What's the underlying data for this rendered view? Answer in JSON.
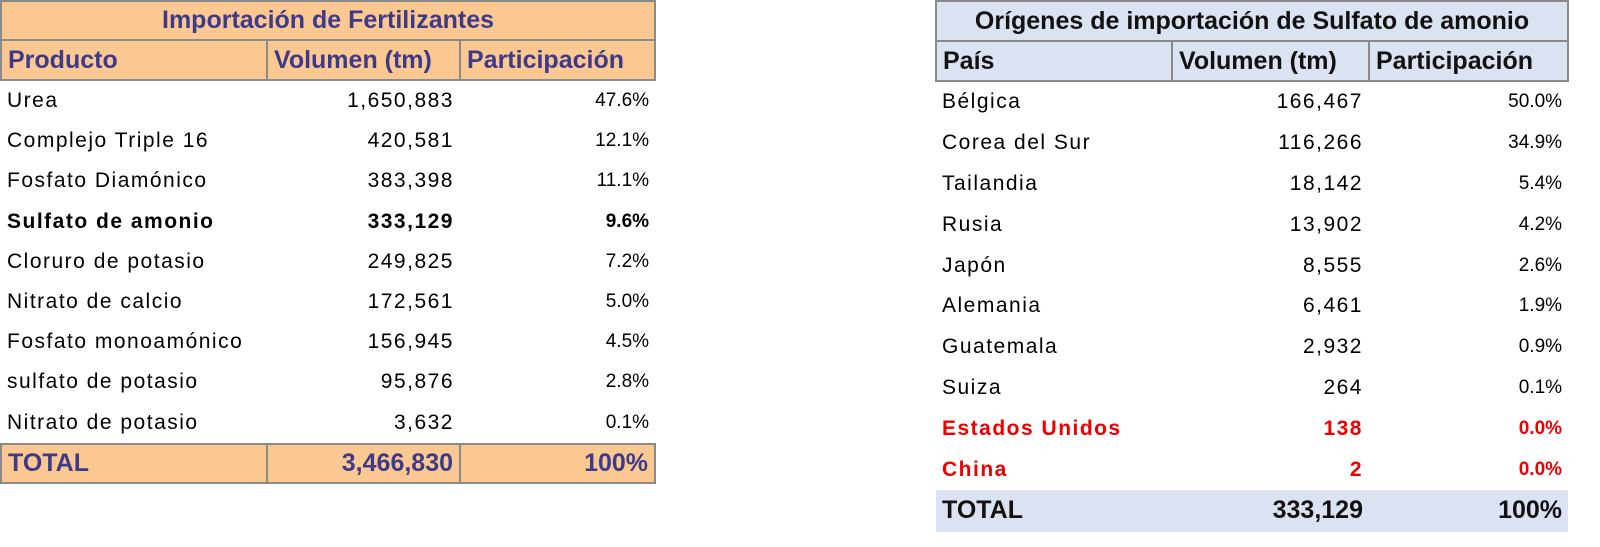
{
  "left_table": {
    "title": "Importación de Fertilizantes",
    "columns": [
      "Producto",
      "Volumen (tm)",
      "Participación"
    ],
    "rows": [
      [
        "Urea",
        "1,650,883",
        "47.6%"
      ],
      [
        "Complejo Triple 16",
        "420,581",
        "12.1%"
      ],
      [
        "Fosfato Diamónico",
        "383,398",
        "11.1%"
      ],
      [
        "Sulfato de amonio",
        "333,129",
        "9.6%"
      ],
      [
        "Cloruro de potasio",
        "249,825",
        "7.2%"
      ],
      [
        "Nitrato de calcio",
        "172,561",
        "5.0%"
      ],
      [
        "Fosfato monoamónico",
        "156,945",
        "4.5%"
      ],
      [
        "sulfato de potasio",
        "95,876",
        "2.8%"
      ],
      [
        "Nitrato de potasio",
        "3,632",
        "0.1%"
      ]
    ],
    "total": [
      "TOTAL",
      "3,466,830",
      "100%"
    ]
  },
  "right_table": {
    "title": "Orígenes de importación de Sulfato de amonio",
    "columns": [
      "País",
      "Volumen (tm)",
      "Participación"
    ],
    "rows": [
      [
        "Bélgica",
        "166,467",
        "50.0%"
      ],
      [
        "Corea del Sur",
        "116,266",
        "34.9%"
      ],
      [
        "Tailandia",
        "18,142",
        "5.4%"
      ],
      [
        "Rusia",
        "13,902",
        "4.2%"
      ],
      [
        "Japón",
        "8,555",
        "2.6%"
      ],
      [
        "Alemania",
        "6,461",
        "1.9%"
      ],
      [
        "Guatemala",
        "2,932",
        "0.9%"
      ],
      [
        "Suiza",
        "264",
        "0.1%"
      ],
      [
        "Estados Unidos",
        "138",
        "0.0%"
      ],
      [
        "China",
        "2",
        "0.0%"
      ]
    ],
    "total": [
      "TOTAL",
      "333,129",
      "100%"
    ]
  }
}
